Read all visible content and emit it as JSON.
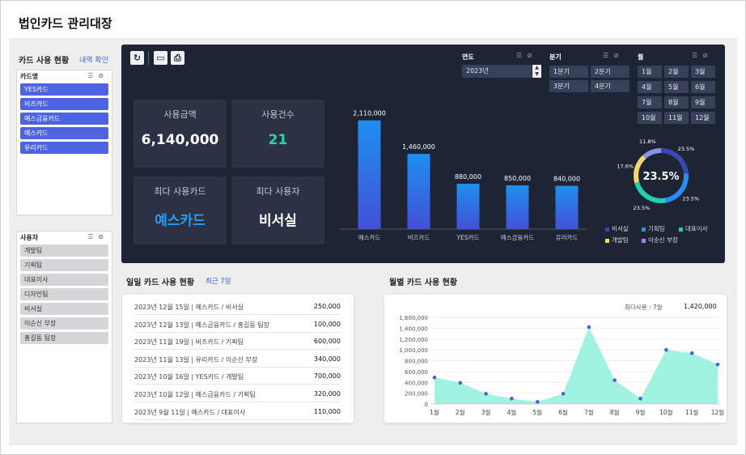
{
  "page": {
    "title": "법인카드 관리대장"
  },
  "left": {
    "title": "카드 사용 현황",
    "link": "내역 확인",
    "card_filter": {
      "header": "카드명",
      "items": [
        "YES카드",
        "비즈카드",
        "예스금융카드",
        "예스카드",
        "유리카드"
      ]
    },
    "user_filter": {
      "header": "사용자",
      "items": [
        "개발팀",
        "기획팀",
        "대표이사",
        "디자인팀",
        "비서실",
        "이순신 부장",
        "홍길동 팀장"
      ]
    }
  },
  "dashboard": {
    "toolbar_icons": [
      "refresh-icon",
      "monitor-icon",
      "print-icon"
    ],
    "kpis": [
      {
        "label": "사용금액",
        "value": "6,140,000",
        "color": "#ffffff"
      },
      {
        "label": "사용건수",
        "value": "21",
        "color": "#2fd3a6"
      },
      {
        "label": "최다 사용카드",
        "value": "예스카드",
        "color": "#2a9cf2"
      },
      {
        "label": "최다 사용자",
        "value": "비서실",
        "color": "#ffffff"
      }
    ],
    "year_filter": {
      "label": "연도",
      "value": "2023년"
    },
    "quarter_filter": {
      "label": "분기",
      "options": [
        "1분기",
        "2분기",
        "3분기",
        "4분기"
      ]
    },
    "month_filter": {
      "label": "월",
      "options": [
        "1월",
        "2월",
        "3월",
        "4월",
        "5월",
        "6월",
        "7월",
        "8월",
        "9월",
        "10월",
        "11월",
        "12월"
      ]
    },
    "donut": {
      "center": "23.5%"
    },
    "legend": [
      {
        "name": "비서실",
        "color": "#3b47b3"
      },
      {
        "name": "기획팀",
        "color": "#2a8bf0"
      },
      {
        "name": "대표이사",
        "color": "#22d0b0"
      },
      {
        "name": "개발팀",
        "color": "#f4d66b"
      },
      {
        "name": "이순신 부장",
        "color": "#8a92e6"
      }
    ]
  },
  "daily": {
    "title": "일일 카드 사용 현황",
    "subtitle": "최근 7일",
    "rows": [
      {
        "desc": "2023년 12월 15일 | 예스카드 / 비서실",
        "amount": "250,000"
      },
      {
        "desc": "2023년 12월 13일 | 예스금융카드 / 홍길동 팀장",
        "amount": "100,000"
      },
      {
        "desc": "2023년 11월 19일 | 비즈카드 / 기획팀",
        "amount": "600,000"
      },
      {
        "desc": "2023년 11월 13일 | 유리카드 / 이순신 부장",
        "amount": "340,000"
      },
      {
        "desc": "2023년 10월 16일 | YES카드 / 개발팀",
        "amount": "700,000"
      },
      {
        "desc": "2023년 10월 12일 | 예스금융카드 / 기획팀",
        "amount": "320,000"
      },
      {
        "desc": "2023년 9월 11일 | 예스카드 / 대표이사",
        "amount": "110,000"
      }
    ]
  },
  "monthly": {
    "title": "월별 카드 사용 현황",
    "max_label": "최다사용 : 7월",
    "max_value": "1,420,000"
  },
  "chart_data": [
    {
      "type": "bar",
      "categories": [
        "예스카드",
        "비즈카드",
        "YES카드",
        "예스금융카드",
        "유리카드"
      ],
      "values": [
        2110000,
        1460000,
        880000,
        850000,
        840000
      ],
      "data_labels": [
        "2,110,000",
        "1,460,000",
        "880,000",
        "850,000",
        "840,000"
      ],
      "color": "#2a8bf0"
    },
    {
      "type": "pie",
      "style": "donut",
      "labels": [
        "비서실",
        "기획팀",
        "대표이사",
        "개발팀",
        "이순신 부장"
      ],
      "values": [
        23.5,
        23.5,
        23.5,
        17.6,
        11.8
      ],
      "data_labels": [
        "23.5%",
        "23.5%",
        "23.5%",
        "17.6%",
        "11.8%"
      ],
      "colors": [
        "#3b47b3",
        "#2a8bf0",
        "#22d0b0",
        "#f4d66b",
        "#8a92e6"
      ]
    },
    {
      "type": "area",
      "categories": [
        "1월",
        "2월",
        "3월",
        "4월",
        "5월",
        "6월",
        "7월",
        "8월",
        "9월",
        "10월",
        "11월",
        "12월"
      ],
      "values": [
        490000,
        390000,
        190000,
        100000,
        40000,
        190000,
        1420000,
        440000,
        100000,
        1000000,
        940000,
        730000
      ],
      "ylim": [
        0,
        1600000
      ],
      "yticks": [
        "0",
        "200,000",
        "400,000",
        "600,000",
        "800,000",
        "1,000,000",
        "1,200,000",
        "1,400,000",
        "1,600,000"
      ],
      "fill": "#8ff0dc",
      "point_color": "#4a5fd8"
    }
  ]
}
